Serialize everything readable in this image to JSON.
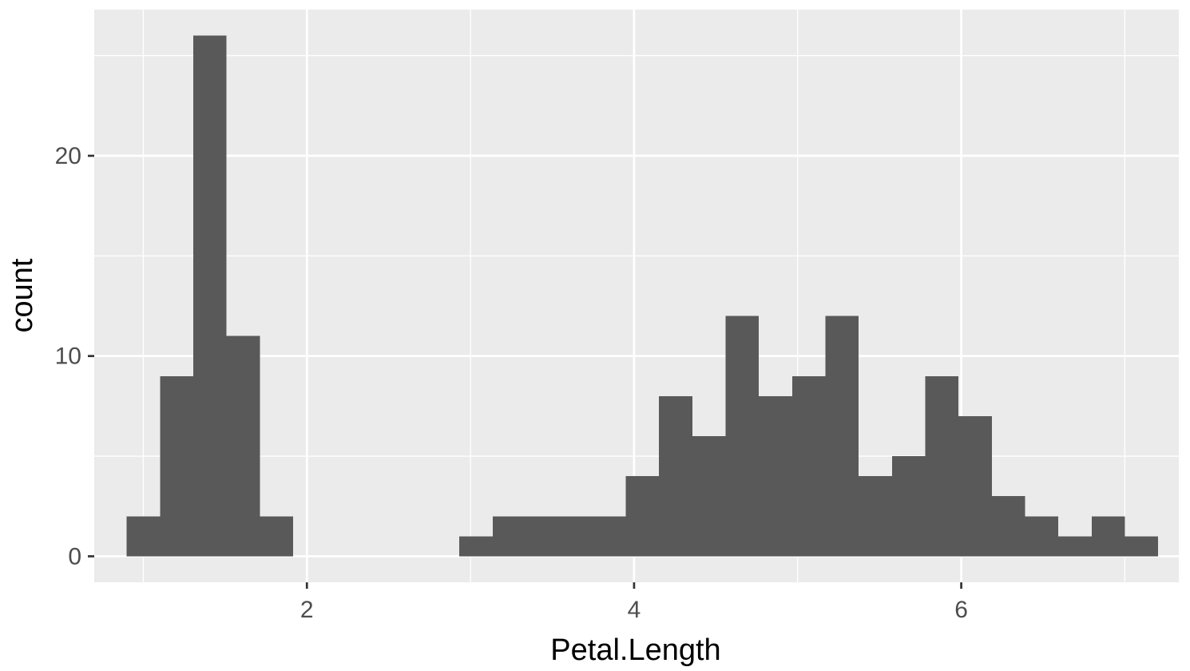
{
  "chart_data": {
    "type": "bar",
    "title": "",
    "xlabel": "Petal.Length",
    "ylabel": "count",
    "xlim": [
      0.7,
      7.33
    ],
    "ylim": [
      -1.3,
      27.3
    ],
    "x_ticks": [
      2,
      4,
      6
    ],
    "x_tick_labels": [
      "2",
      "4",
      "6"
    ],
    "y_ticks": [
      0,
      10,
      20
    ],
    "y_tick_labels": [
      "0",
      "10",
      "20"
    ],
    "x_minor_ticks": [
      1,
      3,
      5,
      7
    ],
    "y_minor_ticks": [
      5,
      15,
      25
    ],
    "grid": true,
    "legend": "none",
    "bin_width": 0.2034,
    "bin_start": 0.8983,
    "values": [
      2,
      9,
      26,
      11,
      2,
      0,
      0,
      0,
      0,
      0,
      1,
      2,
      2,
      2,
      2,
      4,
      8,
      6,
      12,
      8,
      9,
      12,
      4,
      5,
      9,
      7,
      3,
      2,
      1,
      2,
      1
    ],
    "bar_color": "#595959",
    "panel_color": "#ebebeb",
    "grid_color": "#ffffff"
  }
}
